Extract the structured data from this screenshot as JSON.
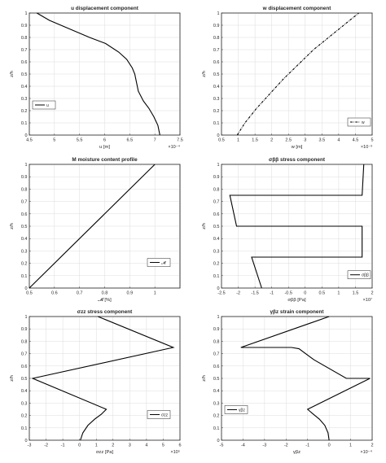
{
  "chart_data": [
    {
      "type": "line",
      "title": "u displacement component",
      "xlabel": "u [m]",
      "ylabel": "z/h",
      "xlim": [
        4.5,
        7.5
      ],
      "ylim": [
        0,
        1
      ],
      "xticks": [
        "4.5",
        "5",
        "5.5",
        "6",
        "6.5",
        "7",
        "7.5"
      ],
      "yticks": [
        "0",
        "0.1",
        "0.2",
        "0.3",
        "0.4",
        "0.5",
        "0.6",
        "0.7",
        "0.8",
        "0.9",
        "1"
      ],
      "exponent": "×10⁻⁴",
      "grid": true,
      "legend": {
        "location": "middle-left",
        "entries": [
          "u"
        ]
      },
      "series": [
        {
          "name": "u",
          "style": "solid",
          "x": [
            7.1,
            7.06,
            6.98,
            6.88,
            6.77,
            6.67,
            6.63,
            6.6,
            6.55,
            6.44,
            6.28,
            6.02,
            5.7,
            5.3,
            4.9,
            4.65
          ],
          "y": [
            0.0,
            0.08,
            0.15,
            0.22,
            0.28,
            0.36,
            0.44,
            0.5,
            0.55,
            0.62,
            0.68,
            0.75,
            0.8,
            0.87,
            0.94,
            1.0
          ]
        }
      ]
    },
    {
      "type": "line",
      "title": "w displacement component",
      "xlabel": "w [m]",
      "ylabel": "z/h",
      "xlim": [
        0.5,
        5
      ],
      "ylim": [
        0,
        1
      ],
      "xticks": [
        "0.5",
        "1",
        "1.5",
        "2",
        "2.5",
        "3",
        "3.5",
        "4",
        "4.5",
        "5"
      ],
      "yticks": [
        "0",
        "0.1",
        "0.2",
        "0.3",
        "0.4",
        "0.5",
        "0.6",
        "0.7",
        "0.8",
        "0.9",
        "1"
      ],
      "exponent": "×10⁻³",
      "grid": true,
      "legend": {
        "location": "bottom-right",
        "entries": [
          "w"
        ]
      },
      "series": [
        {
          "name": "w",
          "style": "dashdot",
          "x": [
            0.97,
            1.2,
            1.55,
            1.95,
            2.35,
            2.8,
            3.25,
            3.7,
            4.15,
            4.6
          ],
          "y": [
            0.0,
            0.1,
            0.22,
            0.34,
            0.46,
            0.58,
            0.7,
            0.8,
            0.9,
            1.0
          ]
        }
      ]
    },
    {
      "type": "line",
      "title": "M moisture content profile",
      "xlabel": "𝓜 [%]",
      "ylabel": "z/h",
      "xlim": [
        0.5,
        1.1
      ],
      "ylim": [
        0,
        1
      ],
      "xticks": [
        "0.5",
        "0.6",
        "0.7",
        "0.8",
        "0.9",
        "1"
      ],
      "yticks": [
        "0",
        "0.1",
        "0.2",
        "0.3",
        "0.4",
        "0.5",
        "0.6",
        "0.7",
        "0.8",
        "0.9",
        "1"
      ],
      "exponent": "",
      "grid": true,
      "legend": {
        "location": "middle-right",
        "entries": [
          "𝓜"
        ]
      },
      "series": [
        {
          "name": "𝓜",
          "style": "solid",
          "x": [
            0.5,
            1.0
          ],
          "y": [
            0.0,
            1.0
          ]
        }
      ]
    },
    {
      "type": "line",
      "title": "σββ stress component",
      "xlabel": "σββ [Pa]",
      "ylabel": "z/h",
      "xlim": [
        -2.5,
        2
      ],
      "ylim": [
        0,
        1
      ],
      "xticks": [
        "-2.5",
        "-2",
        "-1.5",
        "-1",
        "-0.5",
        "0",
        "0.5",
        "1",
        "1.5",
        "2"
      ],
      "yticks": [
        "0",
        "0.1",
        "0.2",
        "0.3",
        "0.4",
        "0.5",
        "0.6",
        "0.7",
        "0.8",
        "0.9",
        "1"
      ],
      "exponent": "×10⁷",
      "grid": true,
      "legend": {
        "location": "bottom-right",
        "entries": [
          "σββ"
        ]
      },
      "series": [
        {
          "name": "σββ",
          "style": "solid",
          "x": [
            -1.3,
            -1.6,
            1.7,
            1.7,
            -2.05,
            -2.25,
            1.7,
            1.75
          ],
          "y": [
            0.0,
            0.25,
            0.25,
            0.5,
            0.5,
            0.75,
            0.75,
            1.0
          ]
        }
      ]
    },
    {
      "type": "line",
      "title": "σzz stress component",
      "xlabel": "σzz [Pa]",
      "ylabel": "z/h",
      "xlim": [
        -3,
        6
      ],
      "ylim": [
        0,
        1
      ],
      "xticks": [
        "-3",
        "-2",
        "-1",
        "0",
        "1",
        "2",
        "3",
        "4",
        "5",
        "6"
      ],
      "yticks": [
        "0",
        "0.1",
        "0.2",
        "0.3",
        "0.4",
        "0.5",
        "0.6",
        "0.7",
        "0.8",
        "0.9",
        "1"
      ],
      "exponent": "×10⁵",
      "grid": true,
      "legend": {
        "location": "middle-right",
        "entries": [
          "σzz"
        ]
      },
      "series": [
        {
          "name": "σzz",
          "style": "solid",
          "x": [
            0.05,
            0.2,
            0.5,
            0.9,
            1.3,
            1.6,
            -2.8,
            5.6,
            1.1
          ],
          "y": [
            0.0,
            0.06,
            0.12,
            0.17,
            0.21,
            0.25,
            0.5,
            0.75,
            1.0
          ]
        }
      ]
    },
    {
      "type": "line",
      "title": "γβz strain component",
      "xlabel": "γβz",
      "ylabel": "z/h",
      "xlim": [
        -5,
        2
      ],
      "ylim": [
        0,
        1
      ],
      "xticks": [
        "-5",
        "-4",
        "-3",
        "-2",
        "-1",
        "0",
        "1",
        "2"
      ],
      "yticks": [
        "0",
        "0.1",
        "0.2",
        "0.3",
        "0.4",
        "0.5",
        "0.6",
        "0.7",
        "0.8",
        "0.9",
        "1"
      ],
      "exponent": "×10⁻⁴",
      "grid": true,
      "legend": {
        "location": "middle-left",
        "entries": [
          "γβz"
        ]
      },
      "series": [
        {
          "name": "γβz",
          "style": "solid",
          "x": [
            0.0,
            -0.05,
            -0.2,
            -0.45,
            -0.8,
            -1.0,
            1.9,
            0.8,
            -0.7,
            -1.4,
            -1.75,
            -4.1,
            0.0
          ],
          "y": [
            0.0,
            0.06,
            0.12,
            0.17,
            0.22,
            0.25,
            0.5,
            0.5,
            0.65,
            0.74,
            0.75,
            0.75,
            1.0
          ]
        }
      ]
    }
  ]
}
